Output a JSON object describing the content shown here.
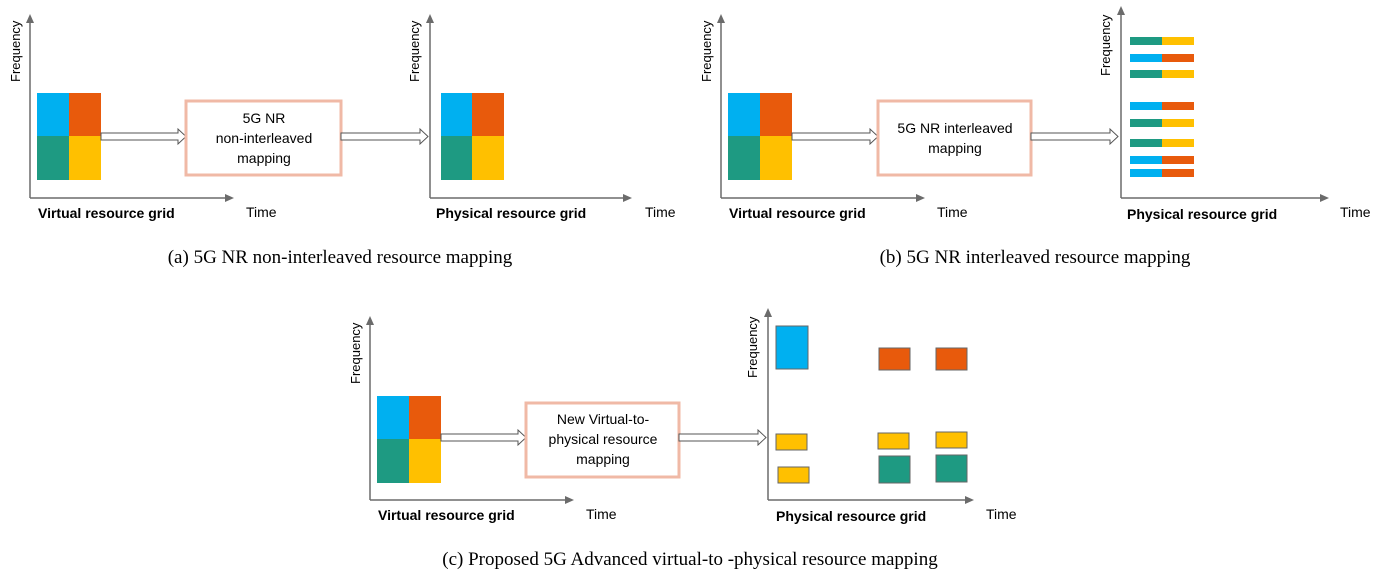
{
  "colors": {
    "blue": "#00b0f0",
    "orange": "#e85a0c",
    "teal": "#1e9a82",
    "yellow": "#ffc000",
    "box_border": "#f0b9a6",
    "axis": "#6b6b6b"
  },
  "labels": {
    "frequency": "Frequency",
    "time": "Time",
    "virtual_grid": "Virtual resource grid",
    "physical_grid": "Physical resource grid"
  },
  "panel_a": {
    "box_line1": "5G NR",
    "box_line2": "non-interleaved",
    "box_line3": "mapping",
    "caption": "(a) 5G NR non-interleaved resource mapping"
  },
  "panel_b": {
    "box_line1": "5G NR interleaved",
    "box_line2": "mapping",
    "caption": "(b) 5G NR interleaved resource mapping"
  },
  "panel_c": {
    "box_line1": "New Virtual-to-",
    "box_line2": "physical resource",
    "box_line3": "mapping",
    "caption": "(c) Proposed 5G Advanced virtual-to -physical resource mapping"
  }
}
